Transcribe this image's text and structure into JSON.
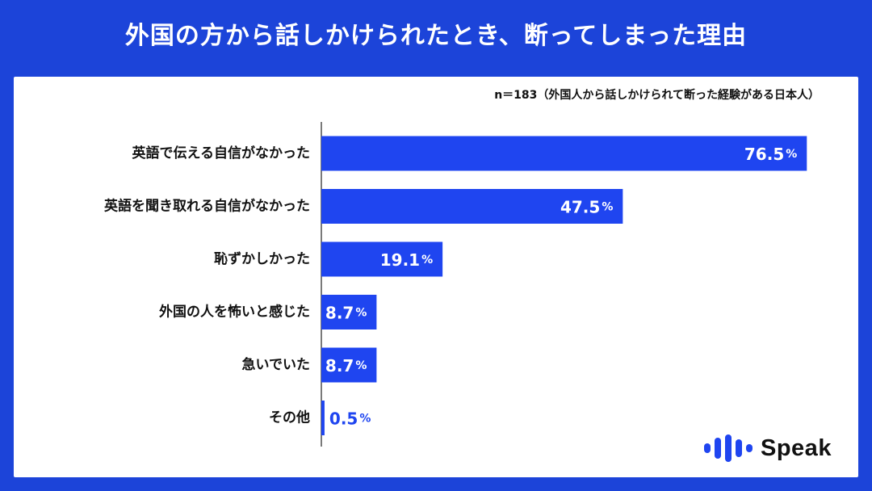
{
  "title": "外国の方から話しかけられたとき、断ってしまった理由",
  "note": "n＝183（外国人から話しかけられて断った経験がある日本人）",
  "brand": {
    "name": "Speak",
    "icon": "speak-logo-icon"
  },
  "colors": {
    "background": "#1c44d9",
    "bar": "#1f45f0",
    "text": "#111111",
    "inside_label": "#ffffff",
    "outside_label": "#1f45f0"
  },
  "chart_data": {
    "type": "bar",
    "orientation": "horizontal",
    "title": "外国の方から話しかけられたとき、断ってしまった理由",
    "categories": [
      "英語で伝える自信がなかった",
      "英語を聞き取れる自信がなかった",
      "恥ずかしかった",
      "外国の人を怖いと感じた",
      "急いでいた",
      "その他"
    ],
    "values": [
      76.5,
      47.5,
      19.1,
      8.7,
      8.7,
      0.5
    ],
    "value_suffix": "%",
    "xlim": [
      0,
      100
    ],
    "grid": false,
    "legend": "none"
  }
}
